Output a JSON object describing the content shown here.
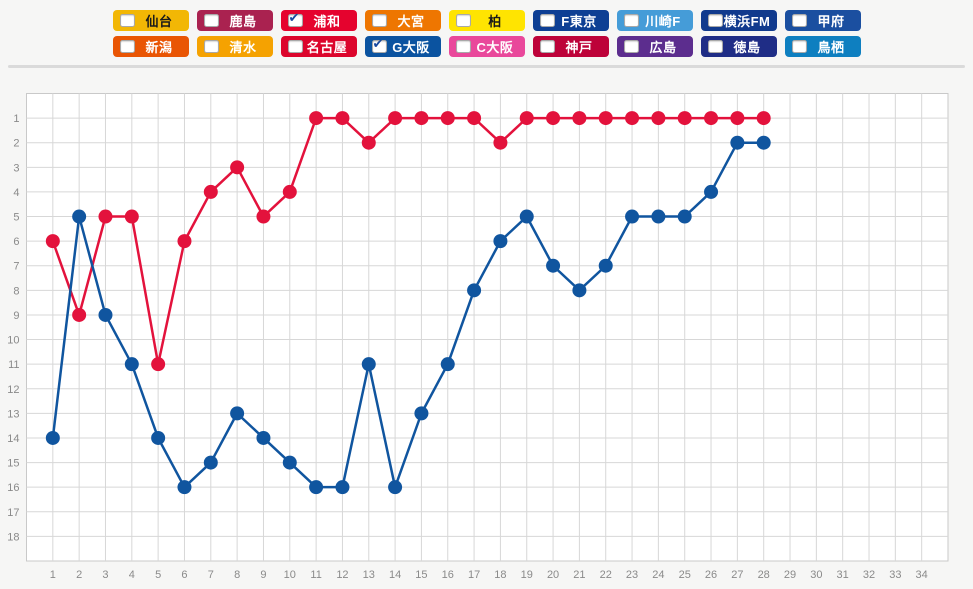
{
  "page": {
    "background": "#f6f6f5"
  },
  "icons": {
    "checkbox_checked_glyph": "✔"
  },
  "legend": {
    "check_color": "#17479e",
    "rows": [
      [
        {
          "label": "仙台",
          "color": "#f2b705",
          "text_color": "#1a1a1a",
          "checked": false
        },
        {
          "label": "鹿島",
          "color": "#aa2250",
          "text_color": "#ffffff",
          "checked": false
        },
        {
          "label": "浦和",
          "color": "#e5032e",
          "text_color": "#ffffff",
          "checked": true
        },
        {
          "label": "大宮",
          "color": "#ee7601",
          "text_color": "#ffffff",
          "checked": false
        },
        {
          "label": "柏",
          "color": "#ffe401",
          "text_color": "#1a1a1a",
          "checked": false
        },
        {
          "label": "F東京",
          "color": "#0e3f94",
          "text_color": "#ffffff",
          "checked": false
        },
        {
          "label": "川崎F",
          "color": "#459cd8",
          "text_color": "#ffffff",
          "checked": false
        },
        {
          "label": "横浜FM",
          "color": "#113a8d",
          "text_color": "#ffffff",
          "checked": false
        },
        {
          "label": "甲府",
          "color": "#1b4fa0",
          "text_color": "#ffffff",
          "checked": false
        }
      ],
      [
        {
          "label": "新潟",
          "color": "#e95504",
          "text_color": "#ffffff",
          "checked": false
        },
        {
          "label": "清水",
          "color": "#f5a201",
          "text_color": "#ffffff",
          "checked": false
        },
        {
          "label": "名古屋",
          "color": "#dc052c",
          "text_color": "#ffffff",
          "checked": false
        },
        {
          "label": "G大阪",
          "color": "#0b53a0",
          "text_color": "#ffffff",
          "checked": true
        },
        {
          "label": "C大阪",
          "color": "#e9489b",
          "text_color": "#ffffff",
          "checked": false
        },
        {
          "label": "神戸",
          "color": "#bd0239",
          "text_color": "#ffffff",
          "checked": false
        },
        {
          "label": "広島",
          "color": "#5c2d8e",
          "text_color": "#ffffff",
          "checked": false
        },
        {
          "label": "徳島",
          "color": "#1f2d86",
          "text_color": "#ffffff",
          "checked": false
        },
        {
          "label": "鳥栖",
          "color": "#0e7fc0",
          "text_color": "#ffffff",
          "checked": false
        }
      ]
    ]
  },
  "chart_data": {
    "type": "line",
    "title": "",
    "grid": true,
    "colors": {
      "plot_bg": "#ffffff",
      "plot_border": "#c9c9c9",
      "grid": "#d7d7d7",
      "axis_label": "#8a8a8a"
    },
    "x_axis": {
      "min": 1,
      "max": 34,
      "ticks": [
        1,
        2,
        3,
        4,
        5,
        6,
        7,
        8,
        9,
        10,
        11,
        12,
        13,
        14,
        15,
        16,
        17,
        18,
        19,
        20,
        21,
        22,
        23,
        24,
        25,
        26,
        27,
        28,
        29,
        30,
        31,
        32,
        33,
        34
      ]
    },
    "y_axis": {
      "min": 1,
      "max": 18,
      "inverted": true,
      "ticks": [
        1,
        2,
        3,
        4,
        5,
        6,
        7,
        8,
        9,
        10,
        11,
        12,
        13,
        14,
        15,
        16,
        17,
        18
      ]
    },
    "series": [
      {
        "name": "浦和",
        "color": "#e3123c",
        "x": [
          1,
          2,
          3,
          4,
          5,
          6,
          7,
          8,
          9,
          10,
          11,
          12,
          13,
          14,
          15,
          16,
          17,
          18,
          19,
          20,
          21,
          22,
          23,
          24,
          25,
          26,
          27,
          28
        ],
        "values": [
          6,
          9,
          5,
          5,
          11,
          6,
          4,
          3,
          5,
          4,
          1,
          1,
          2,
          1,
          1,
          1,
          1,
          2,
          1,
          1,
          1,
          1,
          1,
          1,
          1,
          1,
          1,
          1
        ]
      },
      {
        "name": "G大阪",
        "color": "#10559f",
        "x": [
          1,
          2,
          3,
          4,
          5,
          6,
          7,
          8,
          9,
          10,
          11,
          12,
          13,
          14,
          15,
          16,
          17,
          18,
          19,
          20,
          21,
          22,
          23,
          24,
          25,
          26,
          27,
          28
        ],
        "values": [
          14,
          5,
          9,
          11,
          14,
          16,
          15,
          13,
          14,
          15,
          16,
          16,
          11,
          16,
          13,
          11,
          8,
          6,
          5,
          7,
          8,
          7,
          5,
          5,
          5,
          4,
          2,
          2
        ]
      }
    ]
  }
}
